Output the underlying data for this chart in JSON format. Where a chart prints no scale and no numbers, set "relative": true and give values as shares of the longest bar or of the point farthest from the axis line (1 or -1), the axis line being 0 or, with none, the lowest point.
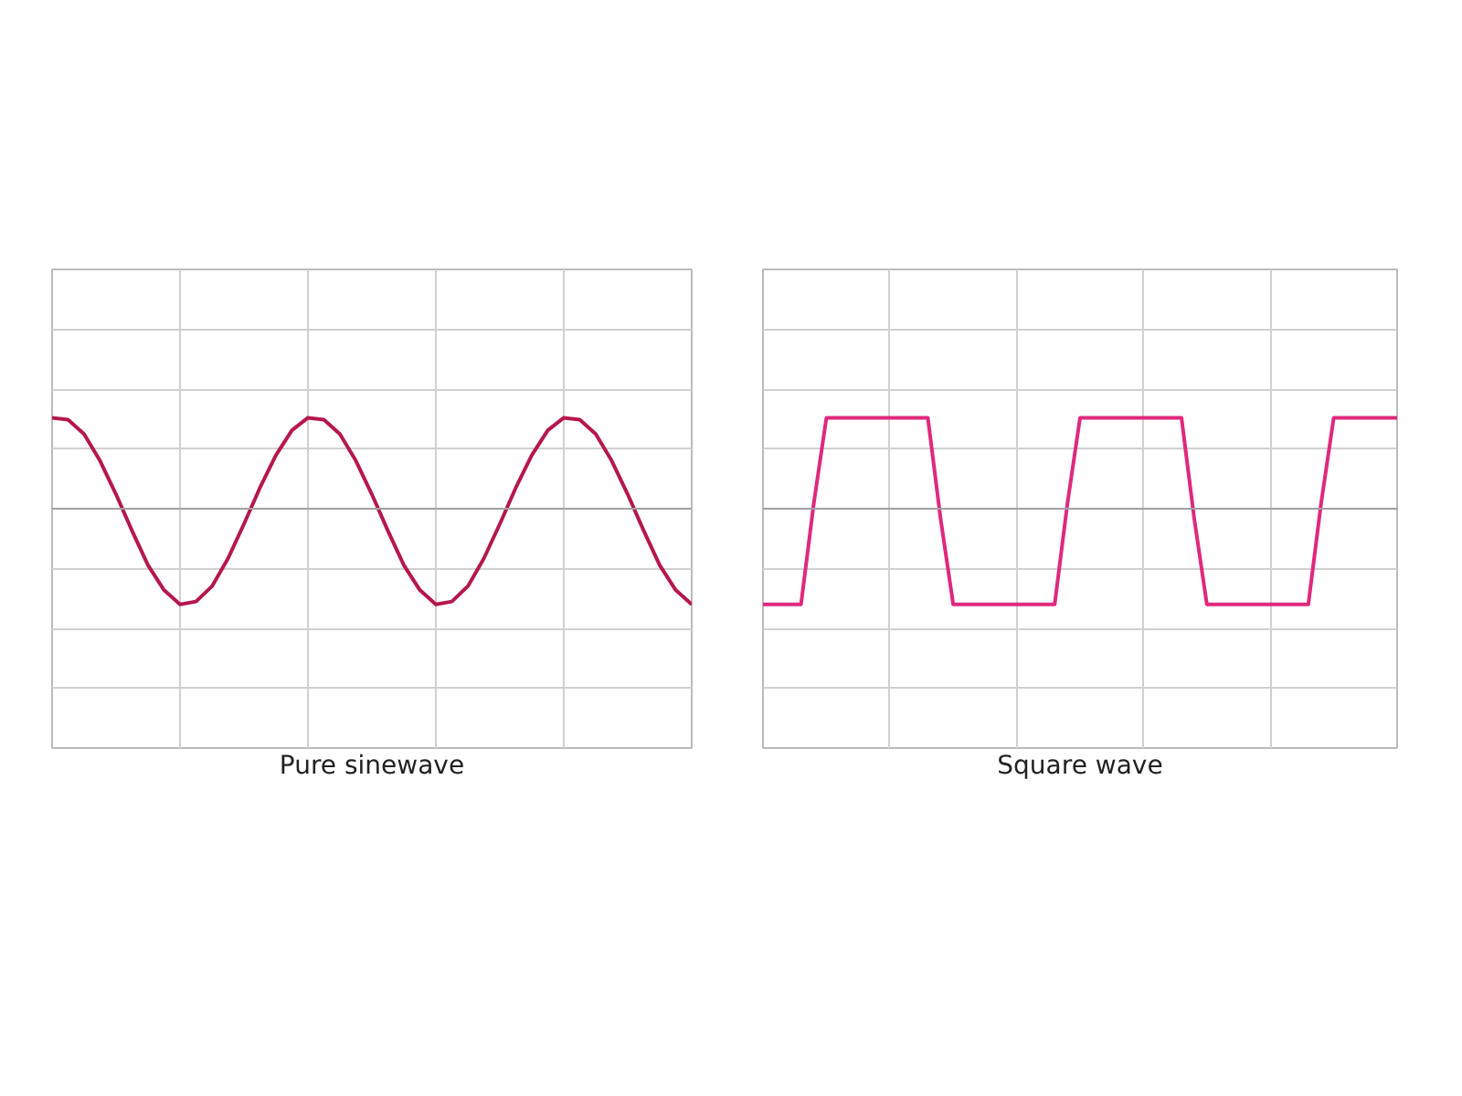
{
  "chart_data": [
    {
      "type": "line",
      "xlabel": "Pure sinewave",
      "relative": true,
      "grid": true,
      "categories": [
        null,
        null,
        null,
        null,
        null,
        null,
        null,
        null,
        null,
        null,
        null,
        null,
        null,
        null,
        null,
        null,
        null,
        null,
        null,
        null,
        null,
        null,
        null,
        null,
        null,
        null,
        null,
        null,
        null,
        null,
        null,
        null,
        null,
        null,
        null,
        null,
        null,
        null,
        null,
        null,
        null
      ],
      "series": [
        {
          "color": "#b5174f",
          "values": [
            0.95,
            0.93,
            0.78,
            0.5,
            0.15,
            -0.23,
            -0.59,
            -0.85,
            -1,
            -0.97,
            -0.81,
            -0.52,
            -0.16,
            0.22,
            0.56,
            0.82,
            0.95,
            0.93,
            0.78,
            0.5,
            0.15,
            -0.23,
            -0.59,
            -0.85,
            -1,
            -0.97,
            -0.81,
            -0.52,
            -0.16,
            0.22,
            0.56,
            0.82,
            0.95,
            0.93,
            0.78,
            0.5,
            0.15,
            -0.23,
            -0.59,
            -0.85,
            -1
          ]
        }
      ]
    },
    {
      "type": "line",
      "xlabel": "Square wave",
      "relative": true,
      "grid": true,
      "categories": [
        null,
        null,
        null,
        null,
        null,
        null,
        null,
        null,
        null,
        null,
        null,
        null,
        null,
        null,
        null,
        null,
        null,
        null,
        null,
        null,
        null,
        null,
        null,
        null,
        null,
        null,
        null,
        null,
        null,
        null,
        null,
        null,
        null,
        null,
        null,
        null,
        null,
        null,
        null,
        null,
        null,
        null,
        null,
        null,
        null,
        null,
        null,
        null,
        null,
        null,
        null
      ],
      "series": [
        {
          "color": "#e0287d",
          "values": [
            -1,
            -1,
            -1,
            -1,
            0.05,
            0.95,
            0.95,
            0.95,
            0.95,
            0.95,
            0.95,
            0.95,
            0.95,
            0.95,
            -0.1,
            -1,
            -1,
            -1,
            -1,
            -1,
            -1,
            -1,
            -1,
            -1,
            0.05,
            0.95,
            0.95,
            0.95,
            0.95,
            0.95,
            0.95,
            0.95,
            0.95,
            0.95,
            -0.1,
            -1,
            -1,
            -1,
            -1,
            -1,
            -1,
            -1,
            -1,
            -1,
            0.05,
            0.95,
            0.95,
            0.95,
            0.95,
            0.95,
            0.95
          ]
        }
      ]
    }
  ]
}
